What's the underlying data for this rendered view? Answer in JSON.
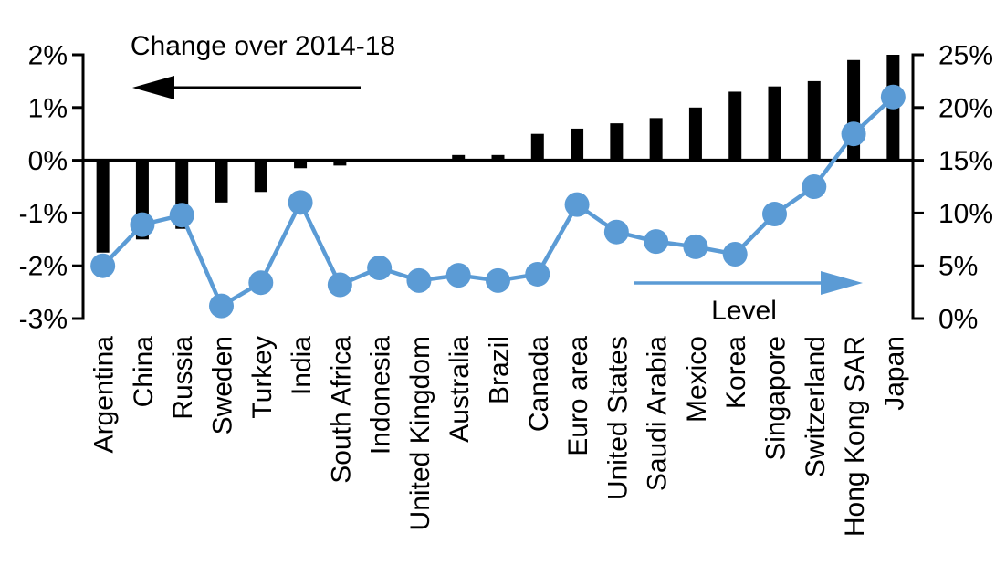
{
  "chart_data": {
    "type": "combo-bar-line",
    "categories": [
      "Argentina",
      "China",
      "Russia",
      "Sweden",
      "Turkey",
      "India",
      "South Africa",
      "Indonesia",
      "United Kingdom",
      "Australia",
      "Brazil",
      "Canada",
      "Euro area",
      "United States",
      "Saudi Arabia",
      "Mexico",
      "Korea",
      "Singapore",
      "Switzerland",
      "Hong Kong SAR",
      "Japan"
    ],
    "series": [
      {
        "name": "Change over 2014-18",
        "type": "bar",
        "axis": "left",
        "color": "#000000",
        "values": [
          -1.75,
          -1.5,
          -1.3,
          -0.8,
          -0.6,
          -0.15,
          -0.1,
          0,
          0,
          0.1,
          0.1,
          0.5,
          0.6,
          0.7,
          0.8,
          1.0,
          1.3,
          1.4,
          1.5,
          1.9,
          2.0
        ]
      },
      {
        "name": "Level",
        "type": "line",
        "axis": "right",
        "color": "#5B9BD5",
        "values": [
          5.0,
          8.9,
          9.8,
          1.2,
          3.4,
          11.0,
          3.2,
          4.8,
          3.6,
          4.1,
          3.6,
          4.2,
          10.8,
          8.2,
          7.3,
          6.8,
          6.1,
          9.9,
          12.5,
          17.5,
          21.0
        ]
      }
    ],
    "left_axis": {
      "tick_labels": [
        "2%",
        "1%",
        "0%",
        "-1%",
        "-2%",
        "-3%"
      ],
      "tick_values": [
        2,
        1,
        0,
        -1,
        -2,
        -3
      ],
      "range": [
        -3,
        2
      ]
    },
    "right_axis": {
      "tick_labels": [
        "25%",
        "20%",
        "15%",
        "10%",
        "5%",
        "0%"
      ],
      "tick_values": [
        25,
        20,
        15,
        10,
        5,
        0
      ],
      "range": [
        0,
        25
      ]
    },
    "annotations": {
      "bar_label": "Change over 2014-18",
      "bar_arrow_direction": "left",
      "bar_arrow_color": "#000000",
      "line_label": "Level",
      "line_arrow_direction": "right",
      "line_arrow_color": "#5B9BD5"
    },
    "grid": false,
    "legend_position": "none"
  }
}
